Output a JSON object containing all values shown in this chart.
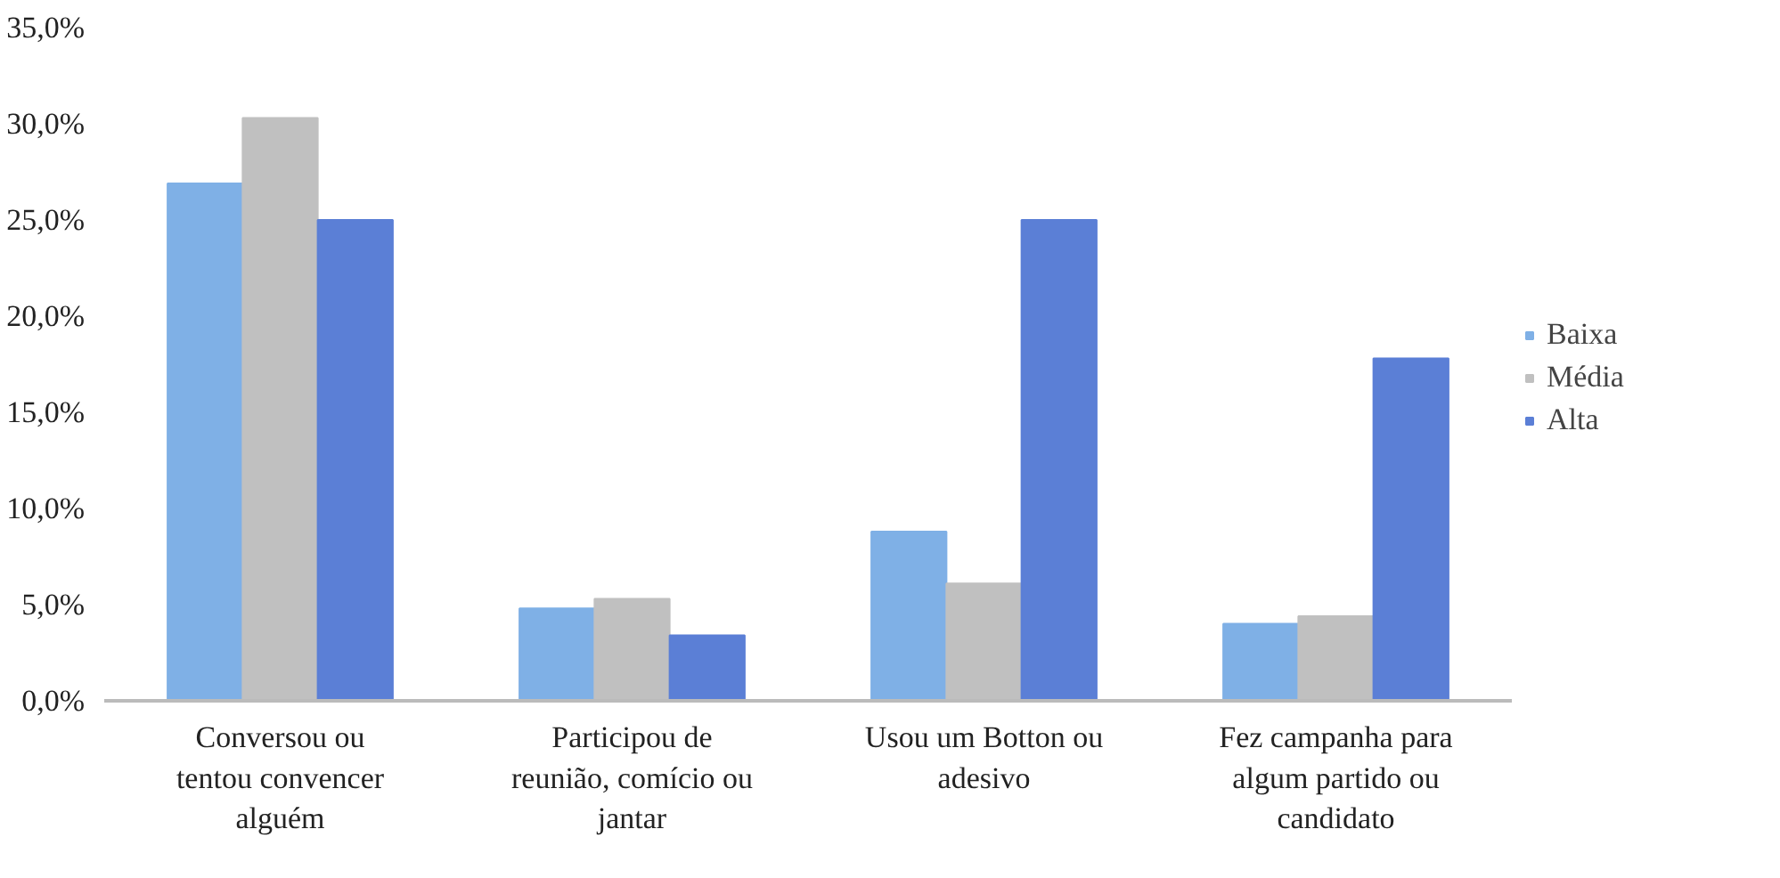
{
  "chart_data": {
    "type": "bar",
    "categories": [
      "Conversou ou\ntentou convencer\nalguém",
      "Participou de\nreunião, comício ou\njantar",
      "Usou um Botton ou\nadesivo",
      "Fez campanha para\nalgum partido ou\ncandidato"
    ],
    "series": [
      {
        "name": "Baixa",
        "color": "#7fb0e6",
        "values": [
          26.9,
          4.8,
          8.8,
          4.0
        ]
      },
      {
        "name": "Média",
        "color": "#c0c0c0",
        "values": [
          30.3,
          5.3,
          6.1,
          4.4
        ]
      },
      {
        "name": "Alta",
        "color": "#5b7fd6",
        "values": [
          25.0,
          3.4,
          25.0,
          17.8
        ]
      }
    ],
    "ylim": [
      0,
      35
    ],
    "yticks": [
      {
        "value": 0,
        "label": "0,0%"
      },
      {
        "value": 5,
        "label": "5,0%"
      },
      {
        "value": 10,
        "label": "10,0%"
      },
      {
        "value": 15,
        "label": "15,0%"
      },
      {
        "value": 20,
        "label": "20,0%"
      },
      {
        "value": 25,
        "label": "25,0%"
      },
      {
        "value": 30,
        "label": "30,0%"
      },
      {
        "value": 35,
        "label": "35,0%"
      }
    ],
    "grid": false,
    "legend": "right"
  }
}
